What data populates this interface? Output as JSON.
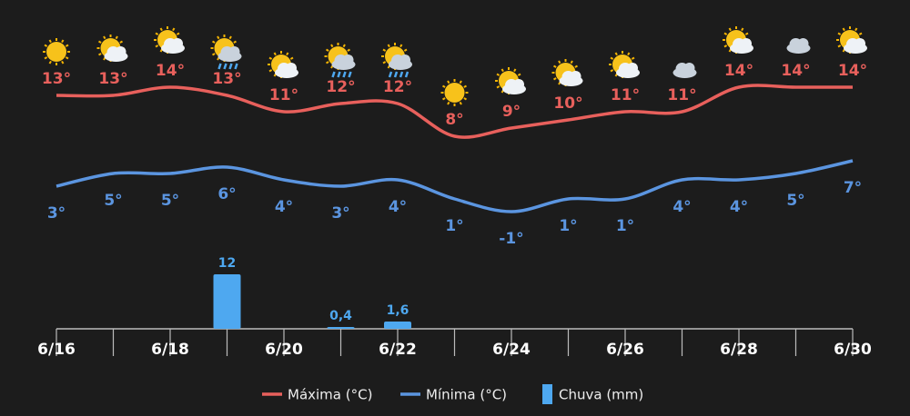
{
  "chart_data": {
    "type": "line",
    "categories": [
      "6/16",
      null,
      "6/18",
      null,
      "6/20",
      null,
      "6/22",
      null,
      "6/24",
      null,
      "6/26",
      null,
      "6/28",
      null,
      "6/30"
    ],
    "series": [
      {
        "name": "Máxima (°C)",
        "color": "#e8605c",
        "type": "line",
        "values": [
          13,
          13,
          14,
          13,
          11,
          12,
          12,
          8,
          9,
          10,
          11,
          11,
          14,
          14,
          14
        ],
        "value_labels": [
          "13°",
          "13°",
          "14°",
          "13°",
          "11°",
          "12°",
          "12°",
          "8°",
          "9°",
          "10°",
          "11°",
          "11°",
          "14°",
          "14°",
          "14°"
        ]
      },
      {
        "name": "Mínima (°C)",
        "color": "#5b95e0",
        "type": "line",
        "values": [
          3,
          5,
          5,
          6,
          4,
          3,
          4,
          1,
          -1,
          1,
          1,
          4,
          4,
          5,
          7
        ],
        "value_labels": [
          "3°",
          "5°",
          "5°",
          "6°",
          "4°",
          "3°",
          "4°",
          "1°",
          "-1°",
          "1°",
          "1°",
          "4°",
          "4°",
          "5°",
          "7°"
        ]
      },
      {
        "name": "Chuva (mm)",
        "color": "#4ea8f0",
        "type": "bar",
        "values": [
          null,
          null,
          null,
          12,
          null,
          0.4,
          1.6,
          null,
          null,
          null,
          null,
          null,
          null,
          null,
          null
        ],
        "value_labels": [
          null,
          null,
          null,
          "12",
          null,
          "0,4",
          "1,6",
          null,
          null,
          null,
          null,
          null,
          null,
          null,
          null
        ]
      }
    ]
  }
}
